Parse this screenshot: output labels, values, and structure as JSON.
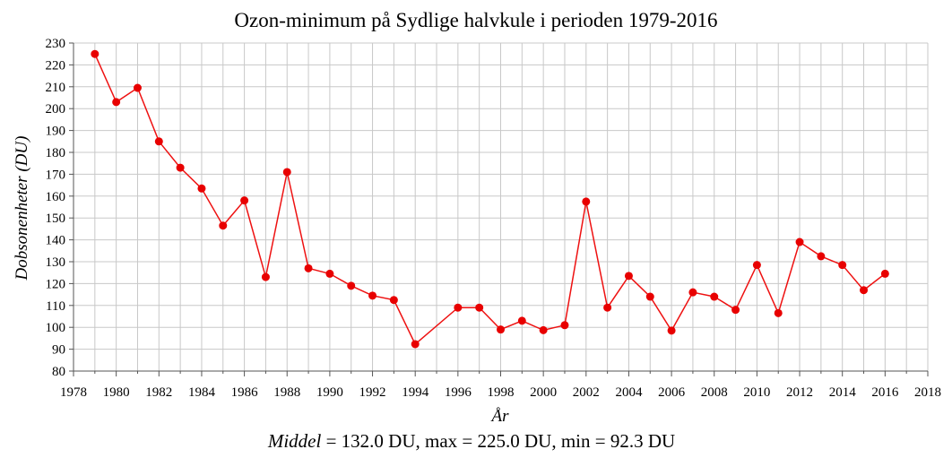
{
  "chart_data": {
    "type": "line",
    "title": "Ozon-minimum på Sydlige halvkule i perioden 1979-2016",
    "xlabel": "År",
    "ylabel": "Dobsonenheter (DU)",
    "xlim": [
      1978,
      2018
    ],
    "ylim": [
      80,
      230
    ],
    "x_ticks": [
      "1978",
      "1980",
      "1982",
      "1984",
      "1986",
      "1988",
      "1990",
      "1992",
      "1994",
      "1996",
      "1998",
      "2000",
      "2002",
      "2004",
      "2006",
      "2008",
      "2010",
      "2012",
      "2014",
      "2016",
      "2018"
    ],
    "y_ticks": [
      "80",
      "90",
      "100",
      "110",
      "120",
      "130",
      "140",
      "150",
      "160",
      "170",
      "180",
      "190",
      "200",
      "210",
      "220",
      "230"
    ],
    "grid": true,
    "color": "#e80000",
    "series": [
      {
        "x": [
          1979,
          1980,
          1981,
          1982,
          1983,
          1984,
          1985,
          1986,
          1987,
          1988,
          1989,
          1990,
          1991,
          1992,
          1993,
          1994,
          1996,
          1997,
          1998,
          1999,
          2000,
          2001,
          2002,
          2003,
          2004,
          2005,
          2006,
          2007,
          2008,
          2009,
          2010,
          2011,
          2012,
          2013,
          2014,
          2015,
          2016
        ],
        "y": [
          225.0,
          203.0,
          209.5,
          185.0,
          173.0,
          163.5,
          146.5,
          158.0,
          123.0,
          171.0,
          127.0,
          124.5,
          119.0,
          114.5,
          112.5,
          92.3,
          109.0,
          109.0,
          99.0,
          103.0,
          98.7,
          101.0,
          157.5,
          109.0,
          123.5,
          114.0,
          98.5,
          116.0,
          114.0,
          108.0,
          128.5,
          106.5,
          139.0,
          132.5,
          128.5,
          117.0,
          124.5
        ]
      }
    ],
    "stats": {
      "mean_label": "Middel",
      "mean_text": " = 132.0 DU,  max = 225.0 DU,  min = 92.3 DU"
    }
  }
}
